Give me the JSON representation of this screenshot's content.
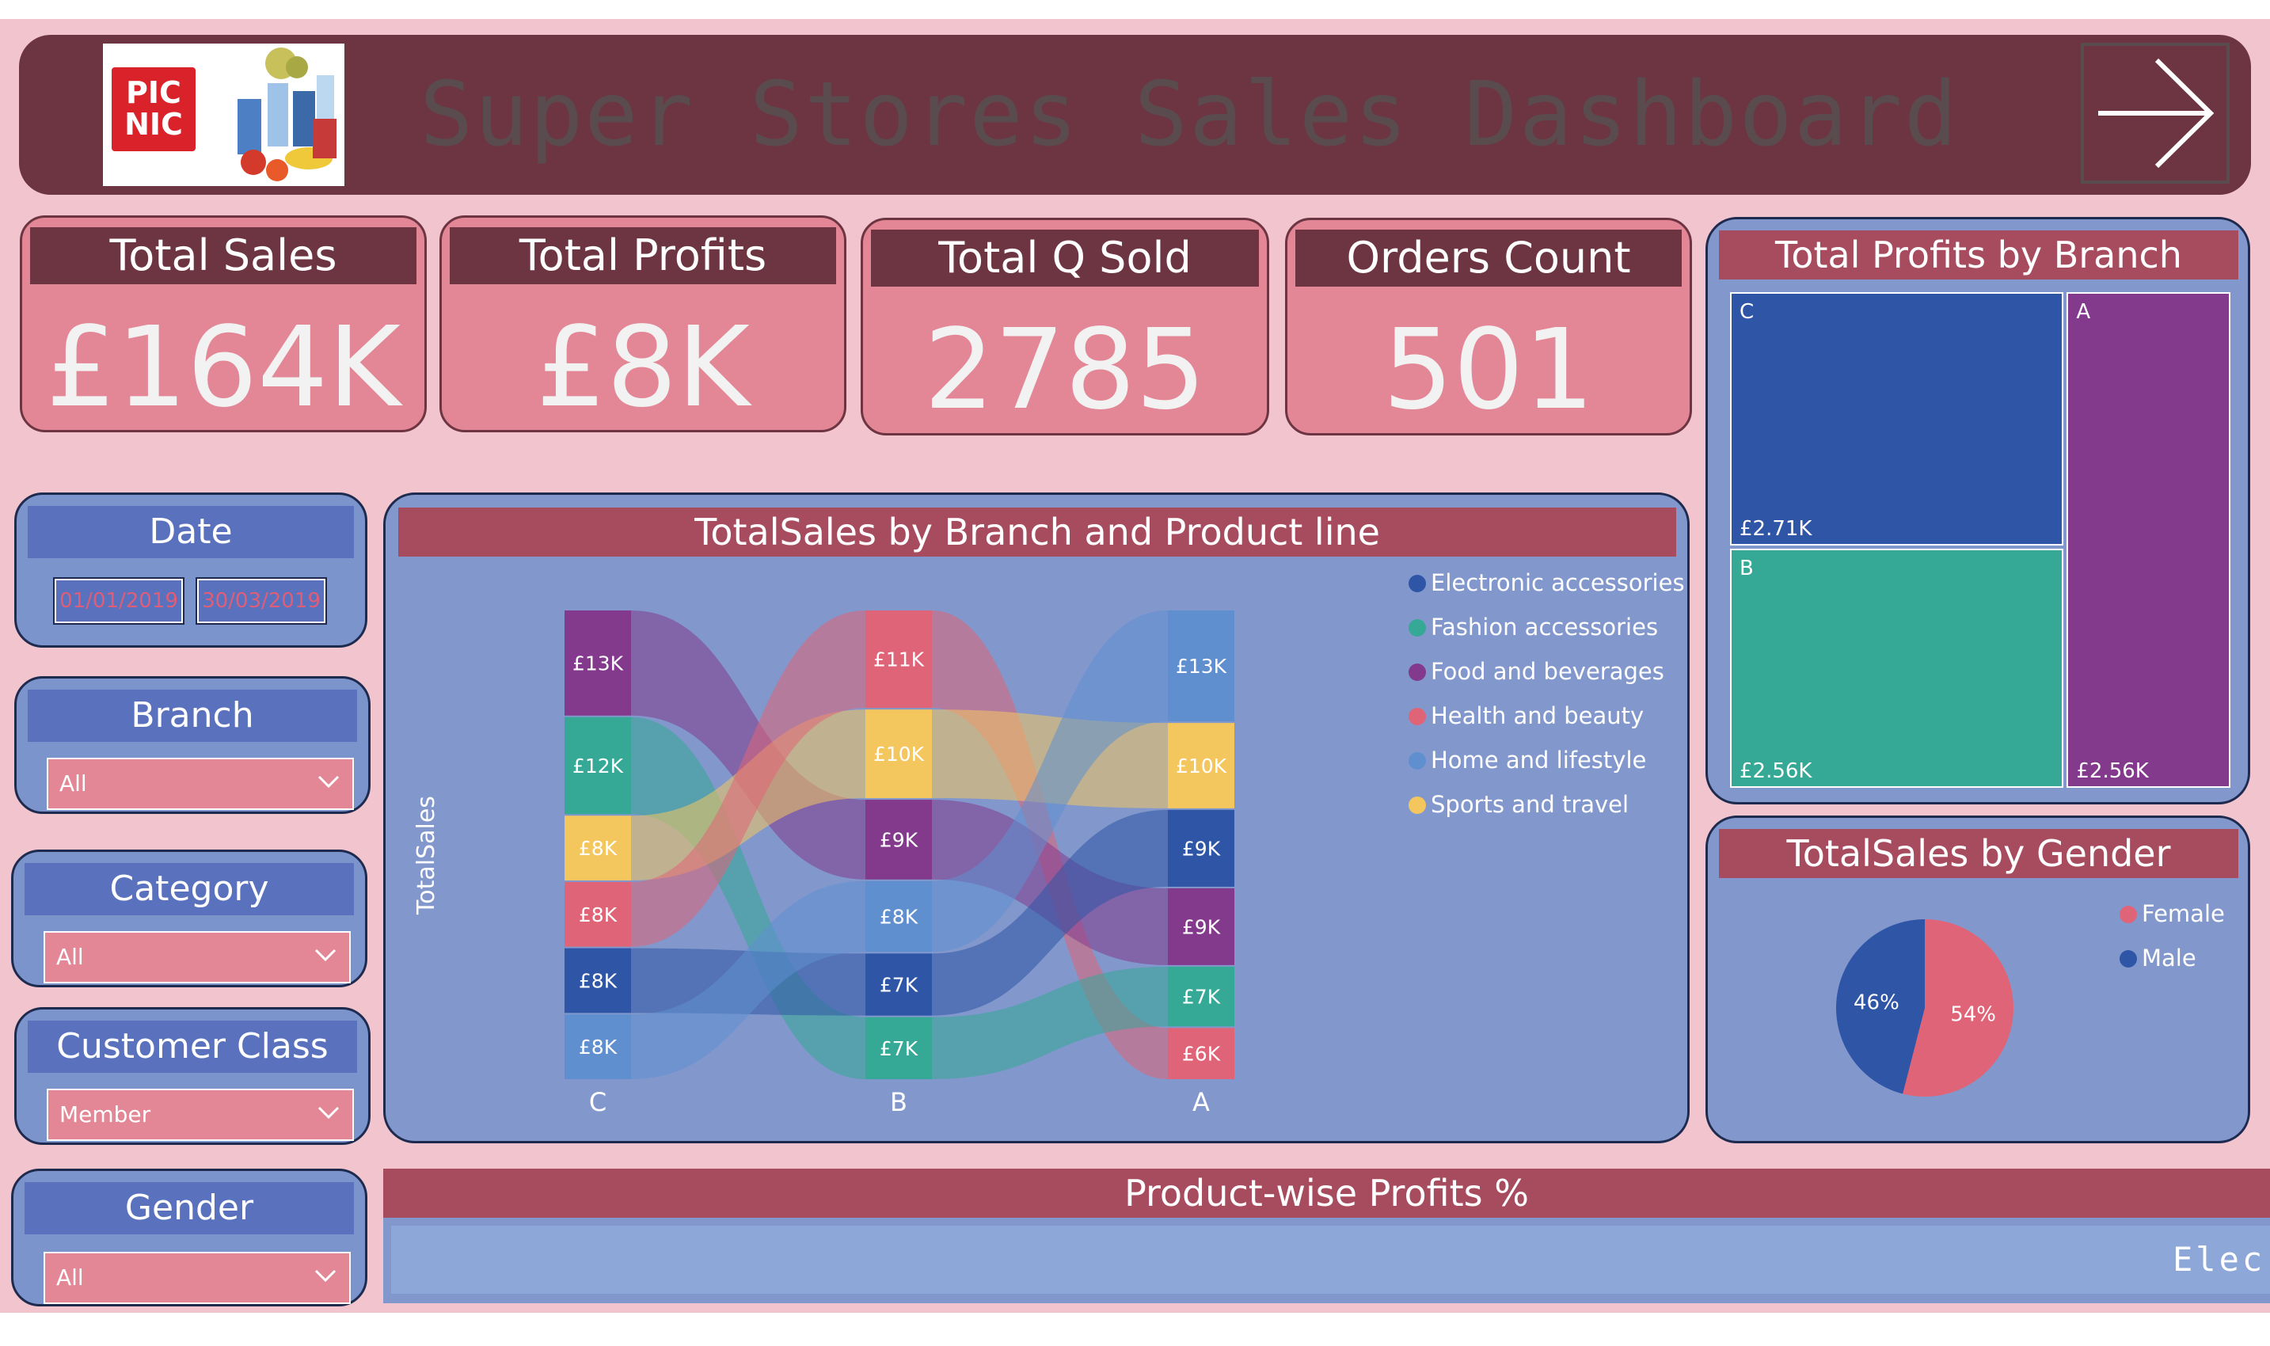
{
  "header": {
    "logo_text": "PIC NIC",
    "title": "Super Stores Sales Dashboard"
  },
  "kpis": [
    {
      "label": "Total Sales",
      "value": "£164K"
    },
    {
      "label": "Total Profits",
      "value": "£8K"
    },
    {
      "label": "Total Q Sold",
      "value": "2785"
    },
    {
      "label": "Orders Count",
      "value": "501"
    }
  ],
  "slicers": {
    "date": {
      "label": "Date",
      "start": "01/01/2019",
      "end": "30/03/2019"
    },
    "branch": {
      "label": "Branch",
      "value": "All"
    },
    "category": {
      "label": "Category",
      "value": "All"
    },
    "customer_class": {
      "label": "Customer Class",
      "value": "Member"
    },
    "gender": {
      "label": "Gender",
      "value": "All"
    }
  },
  "colors": {
    "Electronic accessories": "#2f55a6",
    "Fashion accessories": "#35a896",
    "Food and beverages": "#833a8c",
    "Health and beauty": "#e06477",
    "Home and lifestyle": "#5f8fcf",
    "Sports and travel": "#f4c65e"
  },
  "chart_data": [
    {
      "type": "sankey",
      "title": "TotalSales by Branch and Product line",
      "ylabel": "TotalSales",
      "categories": [
        "C",
        "B",
        "A"
      ],
      "legend": [
        "Electronic accessories",
        "Fashion accessories",
        "Food and beverages",
        "Health and beauty",
        "Home and lifestyle",
        "Sports and travel"
      ],
      "columns": [
        {
          "branch": "C",
          "segments": [
            {
              "line": "Food and beverages",
              "label": "£13K",
              "value": 13
            },
            {
              "line": "Fashion accessories",
              "label": "£12K",
              "value": 12
            },
            {
              "line": "Sports and travel",
              "label": "£8K",
              "value": 8
            },
            {
              "line": "Health and beauty",
              "label": "£8K",
              "value": 8
            },
            {
              "line": "Electronic accessories",
              "label": "£8K",
              "value": 8
            },
            {
              "line": "Home and lifestyle",
              "label": "£8K",
              "value": 8
            }
          ]
        },
        {
          "branch": "B",
          "segments": [
            {
              "line": "Health and beauty",
              "label": "£11K",
              "value": 11
            },
            {
              "line": "Sports and travel",
              "label": "£10K",
              "value": 10
            },
            {
              "line": "Food and beverages",
              "label": "£9K",
              "value": 9
            },
            {
              "line": "Home and lifestyle",
              "label": "£8K",
              "value": 8
            },
            {
              "line": "Electronic accessories",
              "label": "£7K",
              "value": 7
            },
            {
              "line": "Fashion accessories",
              "label": "£7K",
              "value": 7
            }
          ]
        },
        {
          "branch": "A",
          "segments": [
            {
              "line": "Home and lifestyle",
              "label": "£13K",
              "value": 13
            },
            {
              "line": "Sports and travel",
              "label": "£10K",
              "value": 10
            },
            {
              "line": "Electronic accessories",
              "label": "£9K",
              "value": 9
            },
            {
              "line": "Food and beverages",
              "label": "£9K",
              "value": 9
            },
            {
              "line": "Fashion accessories",
              "label": "£7K",
              "value": 7
            },
            {
              "line": "Health and beauty",
              "label": "£6K",
              "value": 6
            }
          ]
        }
      ]
    },
    {
      "type": "treemap",
      "title": "Total Profits by Branch",
      "items": [
        {
          "branch": "C",
          "label": "£2.71K",
          "value": 2.71,
          "color": "#2f55a6"
        },
        {
          "branch": "B",
          "label": "£2.56K",
          "value": 2.56,
          "color": "#35a896"
        },
        {
          "branch": "A",
          "label": "£2.56K",
          "value": 2.56,
          "color": "#833a8c"
        }
      ]
    },
    {
      "type": "pie",
      "title": "TotalSales by Gender",
      "slices": [
        {
          "name": "Female",
          "value": 54,
          "label": "54%",
          "color": "#e06477"
        },
        {
          "name": "Male",
          "value": 46,
          "label": "46%",
          "color": "#2f55a6"
        }
      ]
    }
  ],
  "bottom": {
    "title": "Product-wise Profits %",
    "ticker": "Elec"
  }
}
